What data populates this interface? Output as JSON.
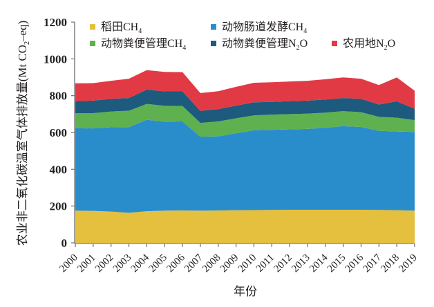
{
  "chart_data": {
    "type": "area",
    "stacked": true,
    "title": "",
    "xlabel": "年份",
    "ylabel": "农业非二氧化碳温室气体排放量(Mt CO2–eq)",
    "ylabel_parts": {
      "main": "农业非二氧化碳温室气体排放量(Mt CO",
      "sub": "2",
      "tail": "–eq)"
    },
    "ylim": [
      0,
      1200
    ],
    "yticks": [
      0,
      200,
      400,
      600,
      800,
      1000,
      1200
    ],
    "grid": false,
    "legend_position": "top",
    "x": [
      "2000",
      "2001",
      "2002",
      "2003",
      "2004",
      "2005",
      "2006",
      "2007",
      "2008",
      "2009",
      "2010",
      "2011",
      "2012",
      "2013",
      "2014",
      "2015",
      "2016",
      "2017",
      "2018",
      "2019"
    ],
    "series": [
      {
        "name": "稻田CH4",
        "label_main": "稻田CH",
        "label_sub": "4",
        "label_tail": "",
        "color": "#E5C03E",
        "values": [
          175,
          174,
          170,
          163,
          172,
          175,
          176,
          175,
          176,
          177,
          178,
          179,
          180,
          180,
          180,
          180,
          180,
          179,
          177,
          175
        ]
      },
      {
        "name": "动物肠道发酵CH4",
        "label_main": "动物肠道发酵CH",
        "label_sub": "4",
        "label_tail": "",
        "color": "#2A8DCB",
        "values": [
          448,
          448,
          458,
          466,
          497,
          484,
          484,
          402,
          403,
          419,
          434,
          435,
          437,
          439,
          446,
          454,
          450,
          430,
          428,
          428
        ]
      },
      {
        "name": "动物粪便管理CH4",
        "label_main": "动物粪便管理CH",
        "label_sub": "4",
        "label_tail": "",
        "color": "#5FB14F",
        "values": [
          82,
          83,
          86,
          89,
          86,
          86,
          84,
          75,
          81,
          81,
          81,
          83,
          83,
          83,
          82,
          82,
          80,
          76,
          75,
          64
        ]
      },
      {
        "name": "动物粪便管理N2O",
        "label_main": "动物粪便管理N",
        "label_sub": "2",
        "label_tail": "O",
        "color": "#1C5A7E",
        "values": [
          65,
          68,
          69,
          69,
          78,
          78,
          79,
          65,
          67,
          69,
          71,
          69,
          70,
          71,
          71,
          71,
          73,
          67,
          89,
          62
        ]
      },
      {
        "name": "农用地N2O",
        "label_main": "农用地N",
        "label_sub": "2",
        "label_tail": "O",
        "color": "#E23A45",
        "values": [
          97,
          95,
          98,
          105,
          106,
          106,
          105,
          97,
          97,
          102,
          106,
          107,
          107,
          108,
          110,
          112,
          109,
          106,
          130,
          98
        ]
      }
    ]
  }
}
